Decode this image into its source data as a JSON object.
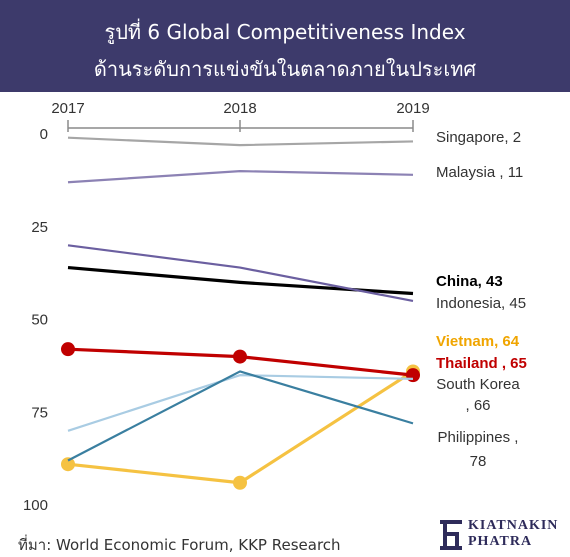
{
  "header": {
    "title_line1": "รูปที่ 6 Global Competitiveness Index",
    "title_line2": "ด้านระดับการแข่งขันในตลาดภายในประเทศ"
  },
  "chart_data": {
    "type": "line",
    "x": [
      "2017",
      "2018",
      "2019"
    ],
    "y_ticks": [
      0,
      25,
      50,
      75,
      100
    ],
    "ylim": [
      0,
      100
    ],
    "y_inverted": true,
    "grid": false,
    "series": [
      {
        "name": "Singapore",
        "label": "Singapore, 2",
        "values": [
          1,
          3,
          2
        ],
        "color": "#a6a6a6",
        "bold": false,
        "markers": false,
        "label_color": "#333333",
        "label_lines": [
          "Singapore, 2"
        ]
      },
      {
        "name": "Malaysia",
        "label": "Malaysia , 11",
        "values": [
          13,
          10,
          11
        ],
        "color": "#8c82b4",
        "bold": false,
        "markers": false,
        "label_color": "#333333",
        "label_lines": [
          "Malaysia , 11"
        ]
      },
      {
        "name": "China",
        "label": "China, 43",
        "values": [
          36,
          40,
          43
        ],
        "color": "#000000",
        "bold": true,
        "markers": false,
        "label_color": "#000000",
        "label_lines": [
          "China, 43"
        ]
      },
      {
        "name": "Indonesia",
        "label": "Indonesia, 45",
        "values": [
          30,
          36,
          45
        ],
        "color": "#6b5fa0",
        "bold": false,
        "markers": false,
        "label_color": "#333333",
        "label_lines": [
          "Indonesia, 45"
        ]
      },
      {
        "name": "Vietnam",
        "label": "Vietnam, 64",
        "values": [
          89,
          94,
          64
        ],
        "color": "#f5c242",
        "bold": true,
        "markers": true,
        "label_color": "#f0a500",
        "label_lines": [
          "Vietnam, 64"
        ]
      },
      {
        "name": "Thailand",
        "label": "Thailand , 65",
        "values": [
          58,
          60,
          65
        ],
        "color": "#c00000",
        "bold": true,
        "markers": true,
        "label_color": "#c00000",
        "label_lines": [
          "Thailand , 65"
        ]
      },
      {
        "name": "South Korea",
        "label": "South Korea , 66",
        "values": [
          80,
          65,
          66
        ],
        "color": "#a9cce3",
        "bold": false,
        "markers": false,
        "label_color": "#333333",
        "label_lines": [
          "South Korea",
          ", 66"
        ]
      },
      {
        "name": "Philippines",
        "label": "Philippines , 78",
        "values": [
          88,
          64,
          78
        ],
        "color": "#3a7fa0",
        "bold": false,
        "markers": false,
        "label_color": "#333333",
        "label_lines": [
          "Philippines ,",
          "78"
        ]
      }
    ]
  },
  "footer": {
    "source": "ที่มา: World Economic Forum, KKP Research",
    "logo_line1": "KIATNAKIN",
    "logo_line2": "PHATRA"
  }
}
